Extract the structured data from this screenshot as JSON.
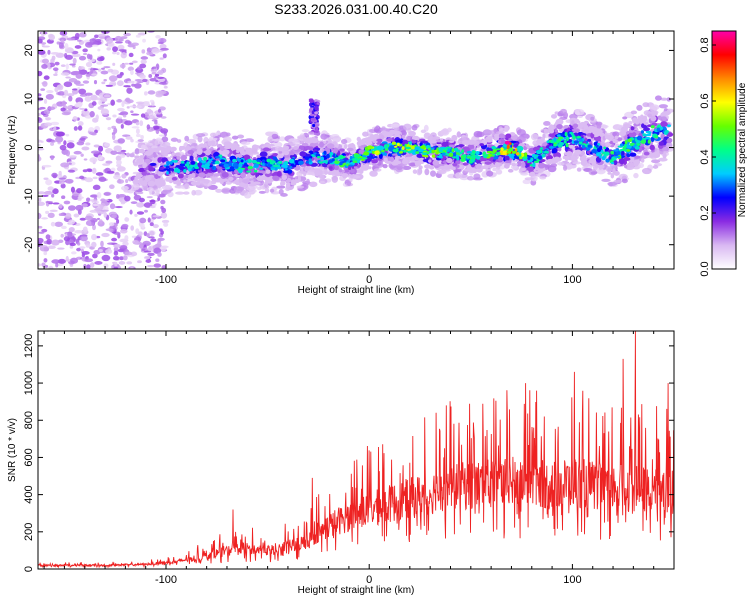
{
  "figure_title": "S233.2026.031.00.40.C20",
  "chart_data": [
    {
      "type": "heatmap",
      "name": "spectrogram",
      "xlabel": "Height of straight line (km)",
      "ylabel": "Frequency (Hz)",
      "xlim": [
        -163,
        150
      ],
      "ylim": [
        -25,
        24
      ],
      "xticks": [
        -100,
        0,
        100
      ],
      "xtick_labels": [
        "-100",
        "0",
        "100"
      ],
      "yticks": [
        -20,
        -10,
        0,
        10,
        20
      ],
      "ytick_labels": [
        "-20",
        "-10",
        "0",
        "10",
        "20"
      ],
      "colorbar": {
        "label": "Normalized spectral amplitude",
        "range": [
          0.0,
          0.85
        ],
        "ticks": [
          0.0,
          0.2,
          0.4,
          0.6,
          0.8
        ],
        "tick_labels": [
          "0.0",
          "0.2",
          "0.4",
          "0.6",
          "0.8"
        ],
        "colors": [
          "#ffffff",
          "#d9b8f2",
          "#8a2be2",
          "#0000ff",
          "#00ccff",
          "#00ff88",
          "#66ff00",
          "#ffff00",
          "#ff8800",
          "#ff0000",
          "#ff00aa"
        ]
      },
      "ridge": {
        "x": [
          -115,
          -100,
          -90,
          -80,
          -70,
          -60,
          -50,
          -40,
          -30,
          -20,
          -10,
          0,
          10,
          20,
          30,
          40,
          50,
          60,
          70,
          80,
          90,
          100,
          110,
          120,
          130,
          140,
          148
        ],
        "freq": [
          -4,
          -4,
          -4,
          -3,
          -3,
          -4,
          -3,
          -4,
          -2,
          -2,
          -3,
          -1,
          0,
          0,
          -1,
          -1,
          -2,
          -1,
          0,
          -3,
          1,
          2,
          0,
          -2,
          1,
          3,
          3
        ],
        "width": [
          4,
          5,
          5,
          5,
          5,
          5,
          5,
          5,
          5,
          4,
          4,
          4,
          4,
          4,
          4,
          4,
          4,
          4,
          4,
          4,
          5,
          5,
          5,
          5,
          6,
          6,
          6
        ],
        "peak": [
          0.3,
          0.38,
          0.42,
          0.45,
          0.45,
          0.48,
          0.45,
          0.43,
          0.4,
          0.5,
          0.52,
          0.6,
          0.65,
          0.6,
          0.58,
          0.55,
          0.55,
          0.58,
          0.85,
          0.45,
          0.55,
          0.5,
          0.45,
          0.5,
          0.55,
          0.5,
          0.45
        ]
      },
      "noise_region_x": [
        -163,
        -110
      ],
      "spike": {
        "x": -27,
        "freq_range": [
          3,
          10
        ]
      }
    },
    {
      "type": "line",
      "name": "snr",
      "xlabel": "Height of straight line (km)",
      "ylabel": "SNR (10 * v/v)",
      "xlim": [
        -163,
        150
      ],
      "ylim": [
        0,
        1280
      ],
      "xticks": [
        -100,
        0,
        100
      ],
      "xtick_labels": [
        "-100",
        "0",
        "100"
      ],
      "yticks": [
        0,
        200,
        400,
        600,
        800,
        1000,
        1200
      ],
      "ytick_labels": [
        "0",
        "200",
        "400",
        "600",
        "800",
        "1000",
        "1200"
      ],
      "color": "#ee2222",
      "baseline": {
        "x": [
          -163,
          -130,
          -110,
          -95,
          -80,
          -70,
          -60,
          -50,
          -40,
          -30,
          -25,
          -20,
          -15,
          -10,
          -5,
          0,
          10,
          20,
          30,
          40,
          50,
          60,
          70,
          80,
          90,
          100,
          110,
          120,
          130,
          140,
          150
        ],
        "y": [
          20,
          20,
          25,
          40,
          70,
          100,
          110,
          100,
          120,
          150,
          200,
          230,
          260,
          280,
          300,
          320,
          350,
          380,
          410,
          440,
          450,
          460,
          470,
          460,
          450,
          470,
          450,
          440,
          430,
          420,
          410
        ]
      },
      "peaks": [
        {
          "x": -67,
          "y": 320
        },
        {
          "x": -28,
          "y": 490
        },
        {
          "x": 33,
          "y": 840
        },
        {
          "x": 38,
          "y": 880
        },
        {
          "x": 68,
          "y": 800
        },
        {
          "x": 77,
          "y": 1000
        },
        {
          "x": 101,
          "y": 1060
        },
        {
          "x": 125,
          "y": 1130
        },
        {
          "x": 131,
          "y": 1280
        },
        {
          "x": 147,
          "y": 1000
        }
      ]
    }
  ]
}
